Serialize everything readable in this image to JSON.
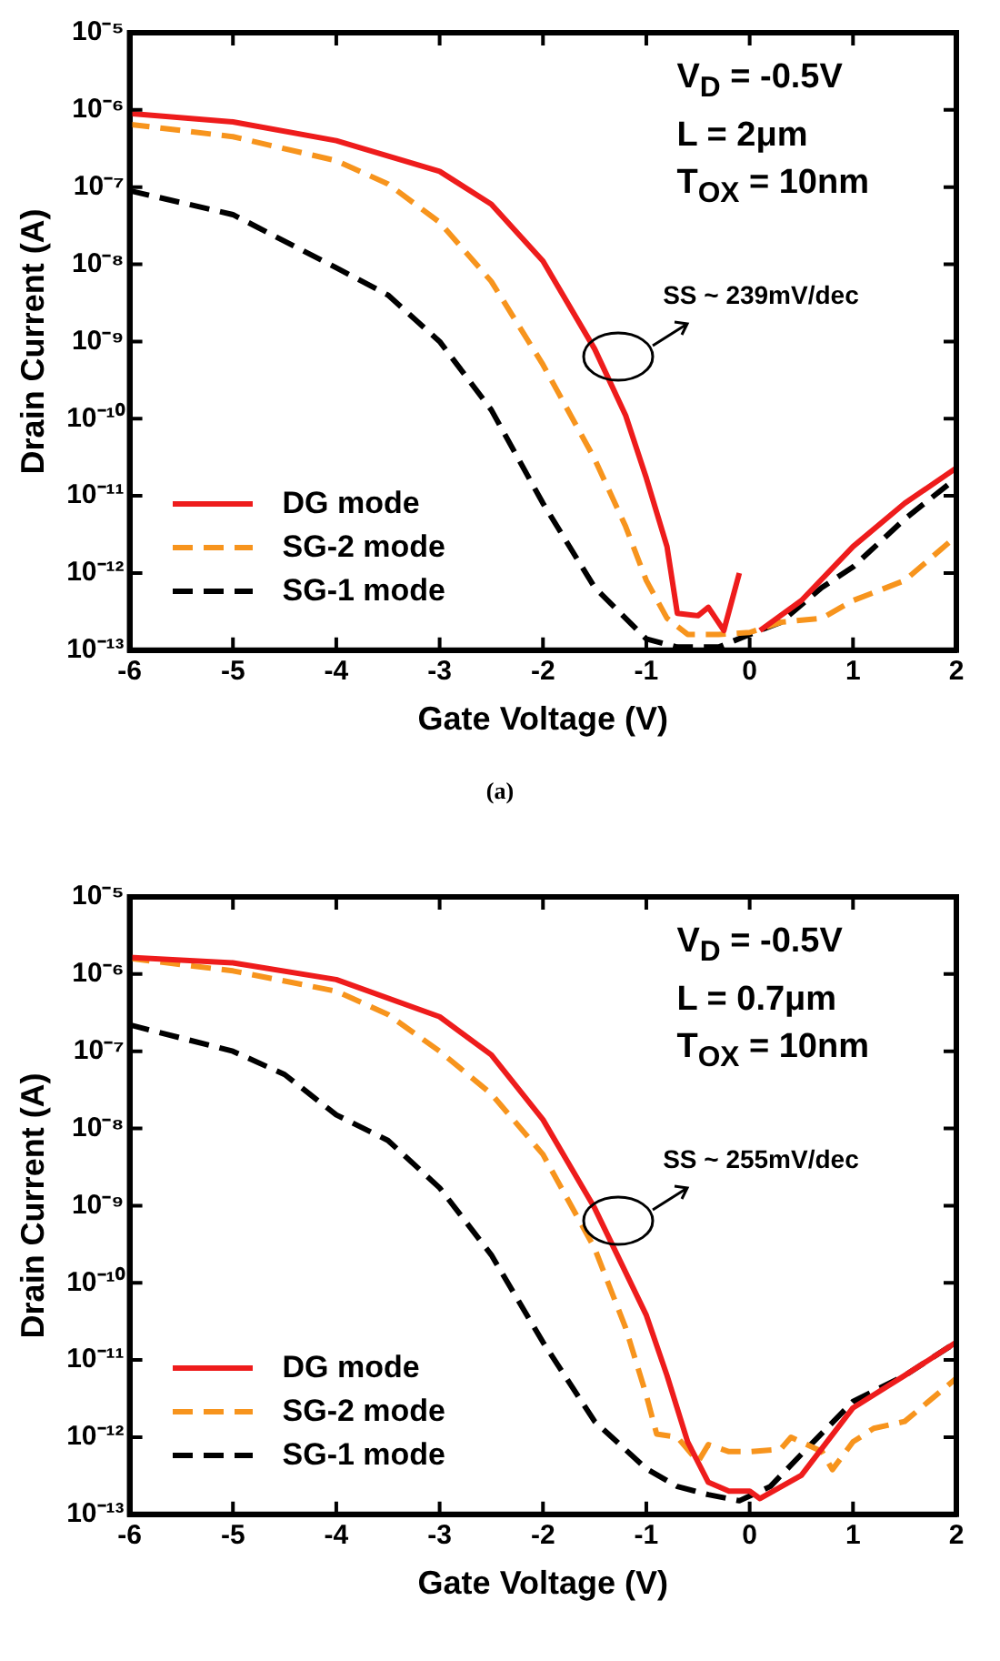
{
  "chart_data": [
    {
      "type": "line",
      "subtitle": "(a)",
      "xlabel": "Gate Voltage (V)",
      "ylabel": "Drain Current (A)",
      "log": "y",
      "grid": false,
      "legend": "bottom left",
      "marker": "none",
      "xlim": [
        -6,
        2
      ],
      "xticks": [
        -6,
        -5,
        -4,
        -3,
        -2,
        -1,
        0,
        1,
        2
      ],
      "ylim": [
        1e-13,
        1e-05
      ],
      "yticks": [
        {
          "value": 1e-05,
          "label": "10⁻⁵"
        },
        {
          "value": 1e-06,
          "label": "10⁻⁶"
        },
        {
          "value": 1e-07,
          "label": "10⁻⁷"
        },
        {
          "value": 1e-08,
          "label": "10⁻⁸"
        },
        {
          "value": 1e-09,
          "label": "10⁻⁹"
        },
        {
          "value": 1e-10,
          "label": "10⁻¹⁰"
        },
        {
          "value": 1e-11,
          "label": "10⁻¹¹"
        },
        {
          "value": 1e-12,
          "label": "10⁻¹²"
        },
        {
          "value": 1e-13,
          "label": "10⁻¹³"
        }
      ],
      "annotations": [
        "V$_{D}$ = -0.5V",
        "L = 2μm",
        "T$_{OX}$ = 10nm",
        "SS ~ 239mV/dec"
      ],
      "series": [
        {
          "name": "DG mode",
          "color": "#ee1c1c",
          "line_style": "solid",
          "x": [
            -6,
            -5,
            -4,
            -3,
            -2.5,
            -2,
            -1.5,
            -1.2,
            -1,
            -0.8,
            -0.7,
            -0.5,
            -0.4,
            -0.25,
            -0.1,
            0,
            0.1,
            0.5,
            1,
            1.5,
            2
          ],
          "values": [
            9e-07,
            7e-07,
            4e-07,
            1.6e-07,
            6e-08,
            1.1e-08,
            8e-10,
            1.1e-10,
            1.7e-11,
            2.2e-12,
            3e-13,
            2.8e-13,
            3.6e-13,
            1.8e-13,
            1e-12,
            null,
            1.8e-13,
            4.4e-13,
            2.2e-12,
            8e-12,
            2.3e-11
          ]
        },
        {
          "name": "SG-2 mode",
          "color": "#f7941d",
          "line_style": "dashed",
          "x": [
            -6,
            -5,
            -4,
            -3.5,
            -3,
            -2.5,
            -2,
            -1.5,
            -1.2,
            -1,
            -0.8,
            -0.6,
            -0.3,
            0,
            0.3,
            0.7,
            1,
            1.5,
            2
          ],
          "values": [
            6.5e-07,
            4.5e-07,
            2.2e-07,
            1.1e-07,
            3.5e-08,
            6e-09,
            5e-10,
            3e-11,
            4e-12,
            8e-13,
            2.6e-13,
            1.6e-13,
            1.6e-13,
            1.7e-13,
            2.3e-13,
            2.6e-13,
            4.4e-13,
            8e-13,
            3e-12
          ]
        },
        {
          "name": "SG-1 mode",
          "color": "#000000",
          "line_style": "dashed",
          "x": [
            -6,
            -5,
            -4,
            -3.5,
            -3,
            -2.5,
            -2,
            -1.5,
            -1,
            -0.7,
            -0.3,
            0,
            0.3,
            0.7,
            1,
            1.5,
            2
          ],
          "values": [
            9e-08,
            4.4e-08,
            9e-09,
            4e-09,
            1e-09,
            1.3e-10,
            8e-12,
            6.5e-13,
            1.4e-13,
            1.1e-13,
            1.1e-13,
            1.6e-13,
            2.3e-13,
            6.5e-13,
            1.2e-12,
            5e-12,
            1.7e-11
          ]
        }
      ]
    },
    {
      "type": "line",
      "xlabel": "Gate Voltage (V)",
      "ylabel": "Drain Current (A)",
      "log": "y",
      "grid": false,
      "legend": "bottom left",
      "marker": "none",
      "xlim": [
        -6,
        2
      ],
      "xticks": [
        -6,
        -5,
        -4,
        -3,
        -2,
        -1,
        0,
        1,
        2
      ],
      "ylim": [
        1e-13,
        1e-05
      ],
      "yticks": [
        {
          "value": 1e-05,
          "label": "10⁻⁵"
        },
        {
          "value": 1e-06,
          "label": "10⁻⁶"
        },
        {
          "value": 1e-07,
          "label": "10⁻⁷"
        },
        {
          "value": 1e-08,
          "label": "10⁻⁸"
        },
        {
          "value": 1e-09,
          "label": "10⁻⁹"
        },
        {
          "value": 1e-10,
          "label": "10⁻¹⁰"
        },
        {
          "value": 1e-11,
          "label": "10⁻¹¹"
        },
        {
          "value": 1e-12,
          "label": "10⁻¹²"
        },
        {
          "value": 1e-13,
          "label": "10⁻¹³"
        }
      ],
      "annotations": [
        "V$_{D}$ = -0.5V",
        "L = 0.7μm",
        "T$_{OX}$ = 10nm",
        "SS ~ 255mV/dec"
      ],
      "series": [
        {
          "name": "DG mode",
          "color": "#ee1c1c",
          "line_style": "solid",
          "x": [
            -6,
            -5,
            -4,
            -3,
            -2.5,
            -2,
            -1.5,
            -1,
            -0.8,
            -0.6,
            -0.4,
            -0.2,
            0,
            0.1,
            0.5,
            1,
            1.5,
            2
          ],
          "values": [
            1.65e-06,
            1.4e-06,
            8.5e-07,
            2.8e-07,
            9e-08,
            1.3e-08,
            9.3e-10,
            3.8e-11,
            6.3e-12,
            8.7e-13,
            2.6e-13,
            2e-13,
            2e-13,
            1.6e-13,
            3.2e-13,
            2.4e-12,
            6.3e-12,
            1.7e-11
          ]
        },
        {
          "name": "SG-2 mode",
          "color": "#f7941d",
          "line_style": "dashed",
          "x": [
            -6,
            -5,
            -4,
            -3.5,
            -3,
            -2.5,
            -2,
            -1.5,
            -1.2,
            -1,
            -0.9,
            -0.7,
            -0.5,
            -0.4,
            -0.2,
            0,
            0.3,
            0.4,
            0.7,
            0.8,
            1,
            1.2,
            1.5,
            2
          ],
          "values": [
            1.6e-06,
            1.1e-06,
            6e-07,
            3e-07,
            1e-07,
            2.8e-08,
            4.6e-09,
            2.8e-10,
            2.6e-11,
            3.5e-12,
            1.1e-12,
            1e-12,
            4.8e-13,
            8e-13,
            6.5e-13,
            6.5e-13,
            7e-13,
            1e-12,
            6.5e-13,
            3.8e-13,
            8.7e-13,
            1.3e-12,
            1.6e-12,
            5.8e-12
          ]
        },
        {
          "name": "SG-1 mode",
          "color": "#000000",
          "line_style": "dashed",
          "x": [
            -6,
            -5,
            -4.5,
            -4,
            -3.5,
            -3,
            -2.5,
            -2,
            -1.5,
            -1,
            -0.7,
            -0.4,
            -0.1,
            0.2,
            0.5,
            1,
            1.5,
            2
          ],
          "values": [
            2.2e-07,
            1e-07,
            5e-08,
            1.5e-08,
            7e-09,
            1.7e-09,
            2.3e-10,
            1.7e-11,
            1.6e-12,
            3.9e-13,
            2.3e-13,
            1.8e-13,
            1.5e-13,
            2.3e-13,
            6e-13,
            2.9e-12,
            6.3e-12,
            1.7e-11
          ]
        }
      ]
    }
  ]
}
